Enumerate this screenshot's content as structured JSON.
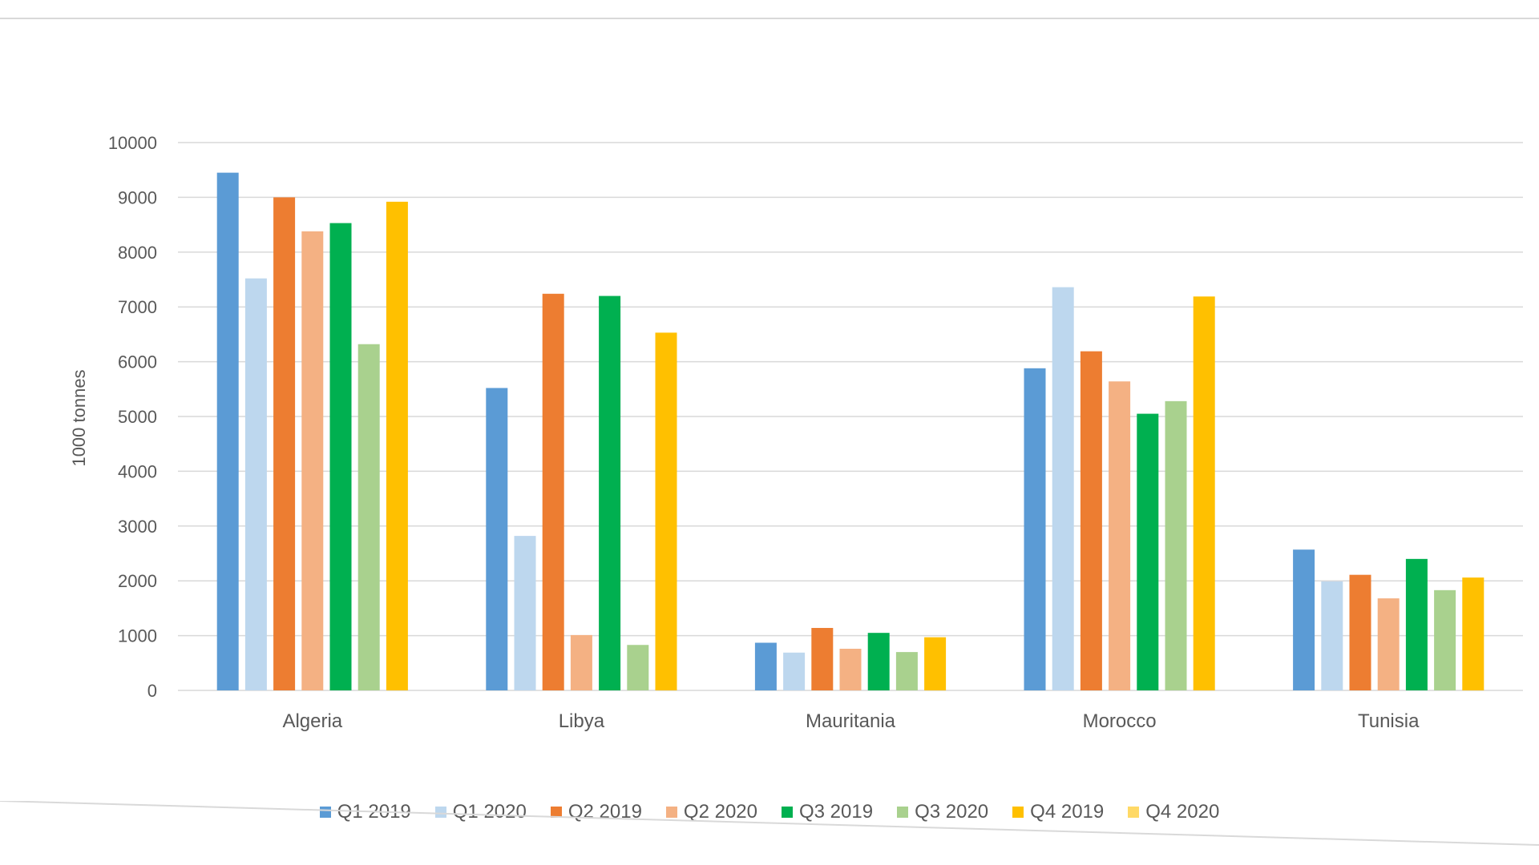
{
  "chart_data": {
    "type": "bar",
    "ylabel": "1000 tonnes",
    "ylim": [
      0,
      10000
    ],
    "yticks": [
      "0",
      "1000",
      "2000",
      "3000",
      "4000",
      "5000",
      "6000",
      "7000",
      "8000",
      "9000",
      "10000"
    ],
    "grid": true,
    "legend_position": "bottom",
    "categories": [
      "Algeria",
      "Libya",
      "Mauritania",
      "Morocco",
      "Tunisia"
    ],
    "series": [
      {
        "name": "Q1 2019",
        "color": "#5B9BD5",
        "values": [
          9450,
          5520,
          870,
          5880,
          2570
        ]
      },
      {
        "name": "Q1 2020",
        "color": "#BDD7EE",
        "values": [
          7520,
          2820,
          690,
          7360,
          1990
        ]
      },
      {
        "name": "Q2 2019",
        "color": "#ED7D31",
        "values": [
          9000,
          7240,
          1140,
          6190,
          2110
        ]
      },
      {
        "name": "Q2 2020",
        "color": "#F4B183",
        "values": [
          8380,
          1010,
          760,
          5640,
          1680
        ]
      },
      {
        "name": "Q3 2019",
        "color": "#00B050",
        "values": [
          8530,
          7200,
          1050,
          5050,
          2400
        ]
      },
      {
        "name": "Q3 2020",
        "color": "#A9D18E",
        "values": [
          6320,
          830,
          700,
          5280,
          1830
        ]
      },
      {
        "name": "Q4 2019",
        "color": "#FFC000",
        "values": [
          8920,
          6530,
          970,
          7190,
          2060
        ]
      },
      {
        "name": "Q4 2020",
        "color": "#FFD966",
        "values": [
          null,
          null,
          null,
          null,
          null
        ]
      }
    ]
  }
}
